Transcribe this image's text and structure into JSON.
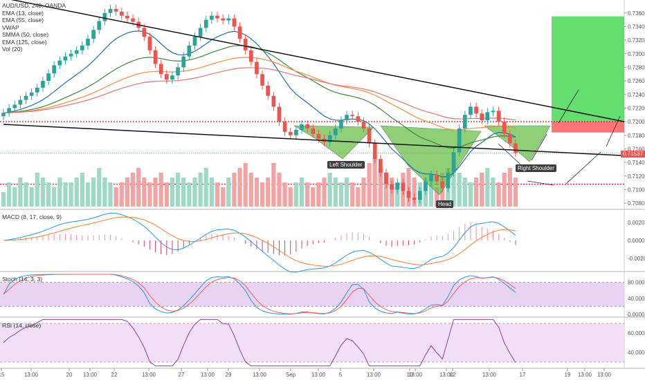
{
  "panels": {
    "main": {
      "legend": [
        "AUD/USD, 240, OANDA",
        "EMA (13, close)",
        "EMA (55, close)",
        "VWAP",
        "SMMA (50, close)",
        "EMA (125, close)",
        "Vol (20)"
      ],
      "price_axis": [
        "0.73600",
        "0.73400",
        "0.73200",
        "0.73000",
        "0.72800",
        "0.72600",
        "0.72400",
        "0.72200",
        "0.72000",
        "0.71800",
        "0.71600",
        "0.71400",
        "0.71200",
        "0.71000",
        "0.70800"
      ],
      "last_price": "0.71537",
      "annotations": {
        "left_shoulder": "Left Shoulder",
        "head": "Head",
        "right_shoulder": "Right Shoulder"
      }
    },
    "macd": {
      "legend": "MACD (8, 17, close, 9)",
      "axis": [
        "0.0020",
        "0.0000",
        "-0.0020"
      ]
    },
    "stoch": {
      "legend": "Stoch (14, 3, 3)",
      "axis": [
        "80.0000",
        "40.0000",
        "0.0000"
      ]
    },
    "rsi": {
      "legend": "RSI (14, close)",
      "axis": [
        "60.0000",
        "40.0000"
      ]
    }
  },
  "time_axis": [
    "15",
    "13:00",
    "20",
    "13:00",
    "22",
    "13:00",
    "27",
    "13:00",
    "29",
    "13:00",
    "Sep",
    "13:00",
    "5",
    "13:00",
    "10",
    "13:00",
    "12",
    "13:00",
    "13:00",
    "17",
    "19",
    "13:00",
    "13:00"
  ],
  "colors": {
    "up": "#26a69a",
    "down": "#ef5350",
    "ema13": "#1e6fa8",
    "ema55": "#ff8a3c",
    "smma50": "#3a8a3a",
    "ema125": "#e57373",
    "pattern": "#6abf4b",
    "target": "#3cd64b",
    "stop": "#ff3b3b"
  },
  "chart_data": {
    "type": "candlestick",
    "symbol": "AUD/USD, 240, OANDA",
    "ylim": [
      0.7075,
      0.7375
    ],
    "close": [
      0.7213,
      0.722,
      0.7225,
      0.7232,
      0.7238,
      0.7243,
      0.725,
      0.726,
      0.7271,
      0.7283,
      0.729,
      0.7296,
      0.73,
      0.7305,
      0.7312,
      0.7322,
      0.7335,
      0.7348,
      0.736,
      0.7366,
      0.7362,
      0.7356,
      0.7352,
      0.7347,
      0.7338,
      0.7325,
      0.7305,
      0.7285,
      0.727,
      0.7262,
      0.7268,
      0.728,
      0.7296,
      0.7312,
      0.7325,
      0.7338,
      0.735,
      0.7356,
      0.7352,
      0.7349,
      0.7352,
      0.734,
      0.7322,
      0.7305,
      0.7288,
      0.727,
      0.7253,
      0.7238,
      0.7222,
      0.72,
      0.7185,
      0.718,
      0.7188,
      0.7196,
      0.719,
      0.7182,
      0.7175,
      0.717,
      0.718,
      0.719,
      0.7202,
      0.721,
      0.7208,
      0.72,
      0.719,
      0.7168,
      0.7145,
      0.7125,
      0.7108,
      0.71,
      0.711,
      0.7098,
      0.7088,
      0.7085,
      0.7098,
      0.7112,
      0.7122,
      0.7112,
      0.7102,
      0.7125,
      0.7155,
      0.719,
      0.721,
      0.7222,
      0.7212,
      0.7202,
      0.7214,
      0.7216,
      0.72,
      0.7182,
      0.7168,
      0.7154
    ],
    "volume_relative": [
      0.3,
      0.5,
      0.4,
      0.6,
      0.5,
      0.4,
      0.7,
      0.6,
      0.5,
      0.4,
      0.6,
      0.5,
      0.5,
      0.6,
      0.7,
      0.5,
      0.6,
      0.8,
      0.6,
      0.5,
      0.4,
      0.5,
      0.6,
      0.7,
      0.8,
      0.6,
      0.5,
      0.6,
      0.7,
      0.5,
      0.6,
      0.7,
      0.6,
      0.5,
      0.6,
      0.7,
      0.8,
      0.6,
      0.5,
      0.4,
      0.6,
      0.7,
      0.8,
      0.9,
      0.7,
      0.6,
      0.5,
      0.6,
      0.9,
      0.7,
      0.5,
      0.4,
      0.5,
      0.6,
      0.5,
      0.4,
      0.5,
      0.6,
      0.7,
      0.6,
      0.5,
      0.6,
      0.5,
      0.4,
      0.6,
      0.9,
      1.0,
      0.8,
      0.7,
      0.6,
      0.5,
      0.7,
      0.8,
      0.6,
      0.5,
      0.6,
      0.5,
      0.4,
      0.7,
      0.8,
      0.9,
      0.7,
      0.6,
      0.5,
      0.6,
      0.7,
      0.8,
      0.6,
      0.5,
      0.7,
      0.8,
      0.6
    ],
    "trendlines": [
      {
        "points": [
          [
            0,
            0.7382
          ],
          [
            91,
            0.72
          ]
        ]
      },
      {
        "points": [
          [
            0,
            0.7196
          ],
          [
            91,
            0.715
          ]
        ]
      }
    ],
    "levels": [
      0.72,
      0.7108
    ],
    "macd_range": [
      -0.003,
      0.003
    ],
    "stoch_levels": [
      80,
      20
    ],
    "rsi_levels": [
      70,
      30
    ]
  }
}
